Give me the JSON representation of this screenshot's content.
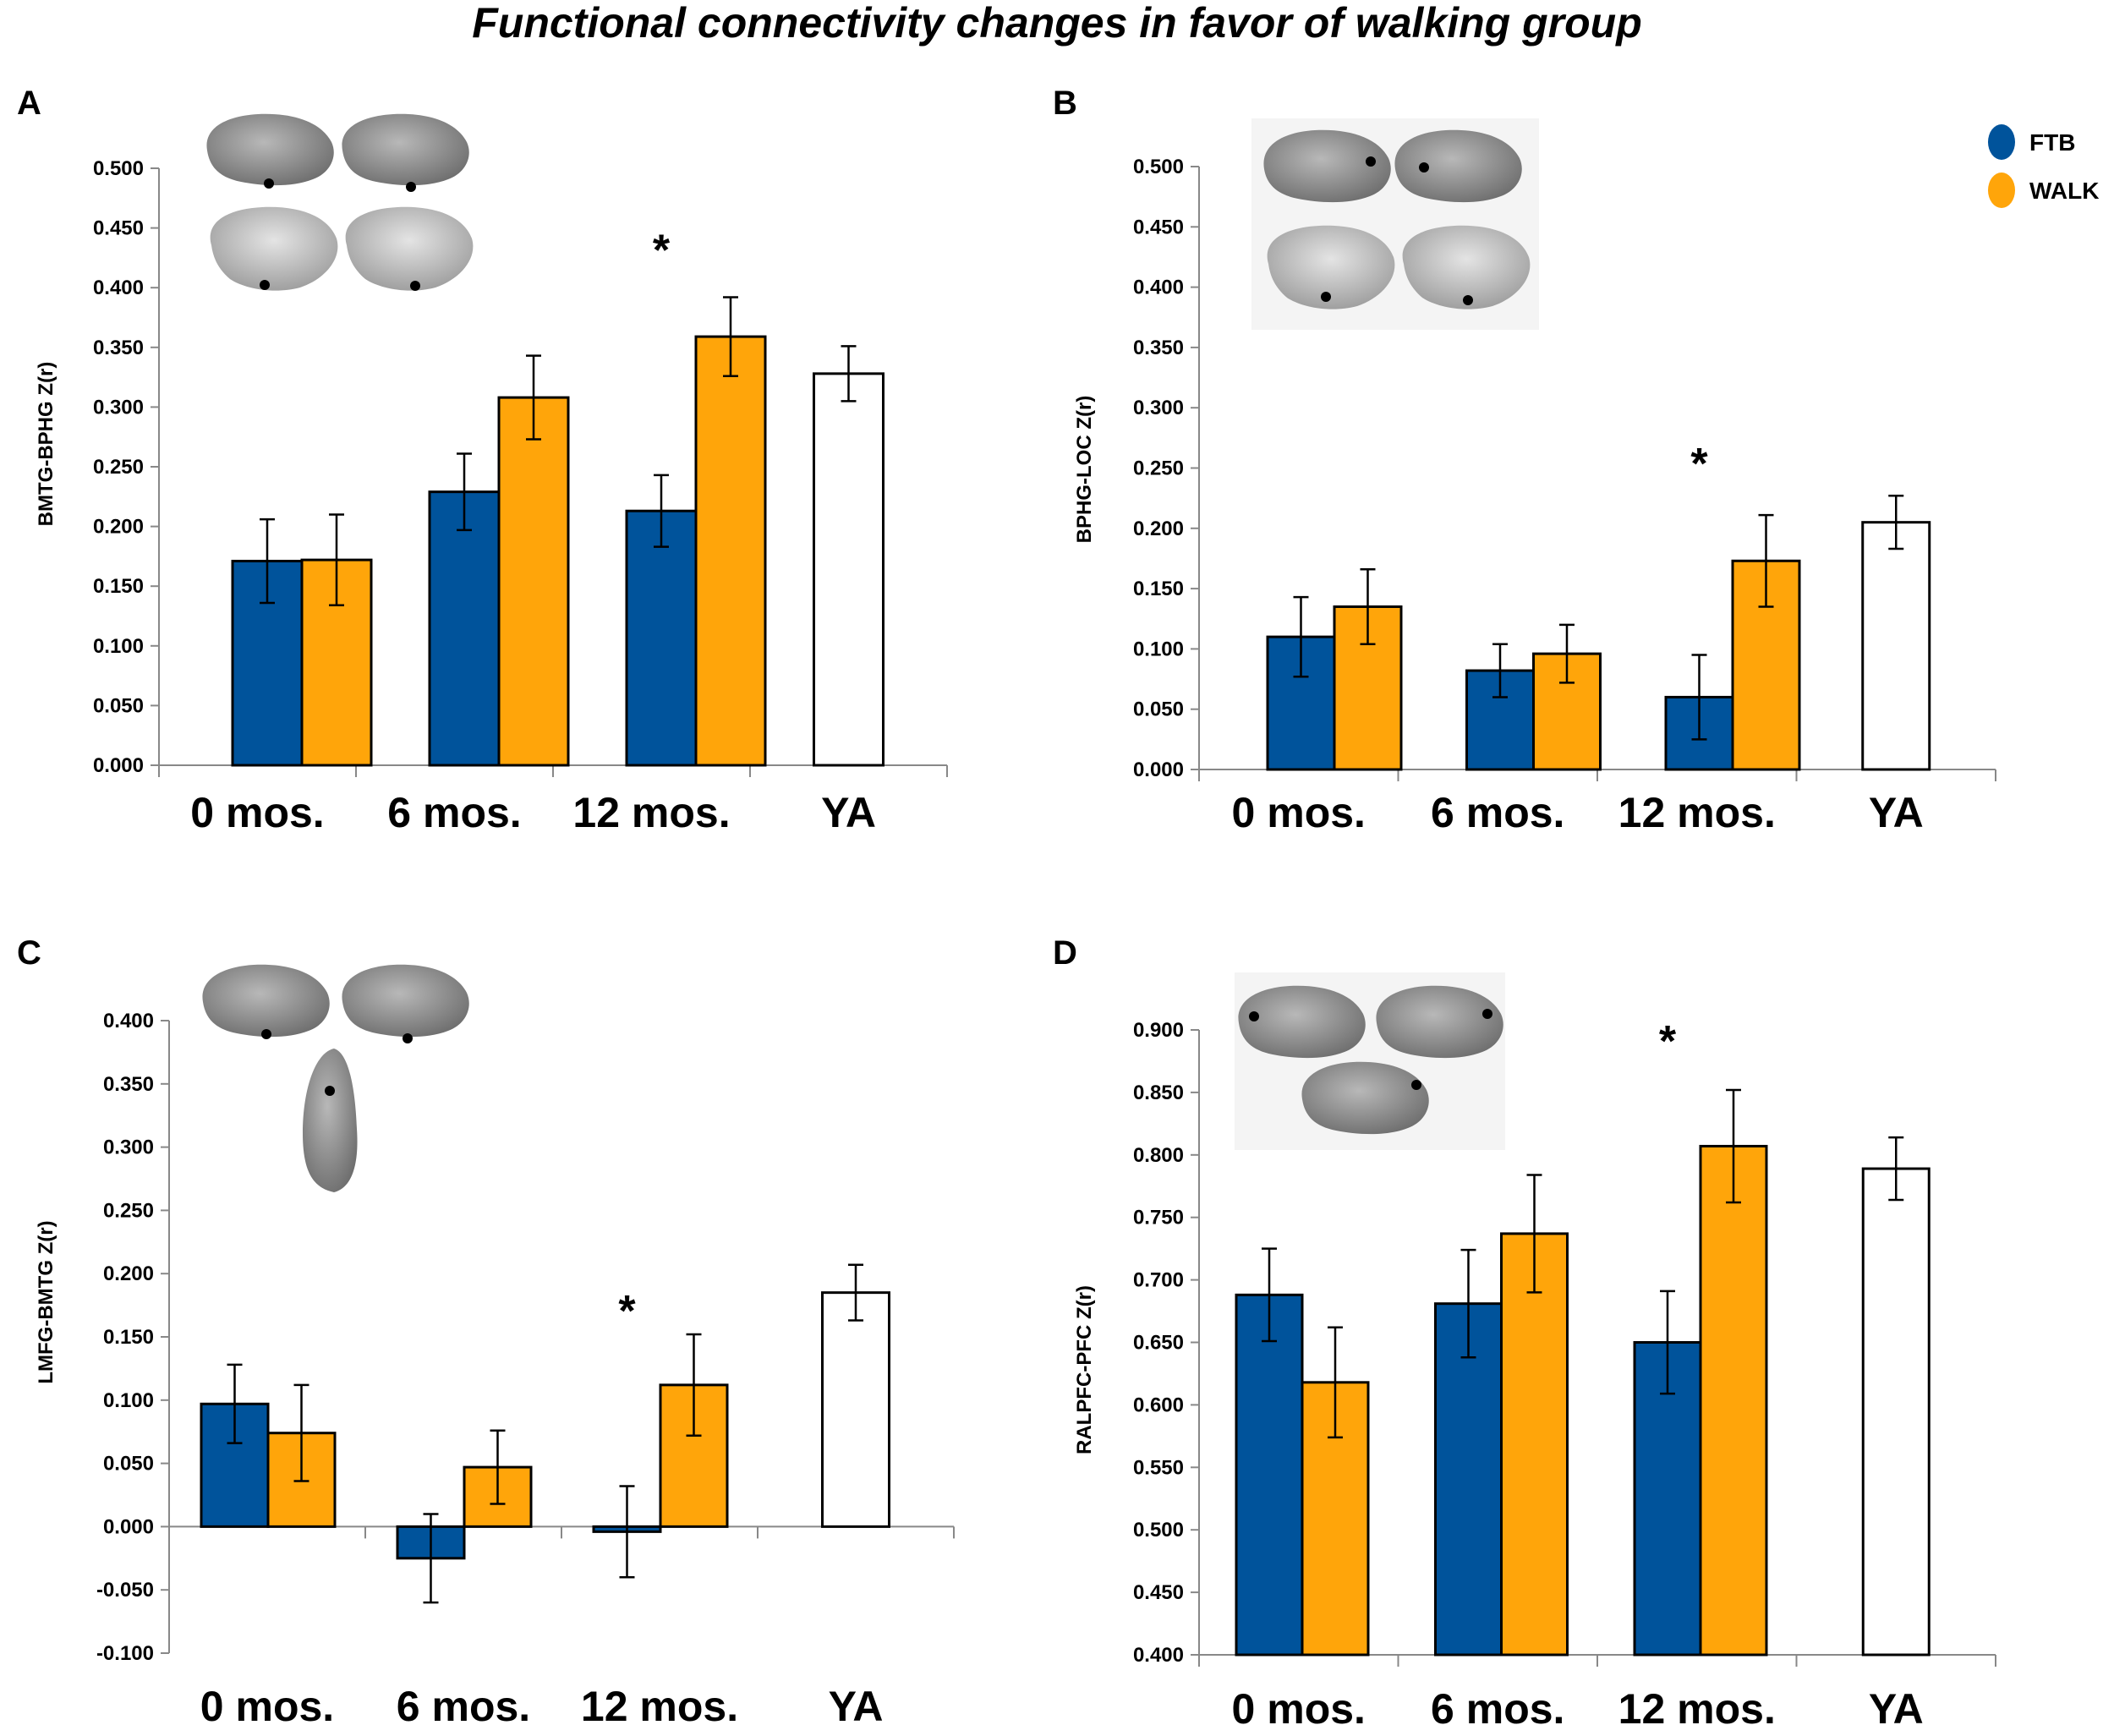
{
  "figure_title": "Functional connectivity changes in favor of walking group",
  "legend": [
    {
      "label": "FTB",
      "color": "#00539b"
    },
    {
      "label": "WALK",
      "color": "#ffa50a"
    }
  ],
  "colors": {
    "ya": "#ffffff",
    "axis": "#888888",
    "error": "#000000"
  },
  "chart_data": [
    {
      "panel": "A",
      "type": "bar",
      "ylabel": "BMTG-BPHG Z(r)",
      "ylim": [
        0,
        0.5
      ],
      "yticks": [
        "0.000",
        "0.050",
        "0.100",
        "0.150",
        "0.200",
        "0.250",
        "0.300",
        "0.350",
        "0.400",
        "0.450",
        "0.500"
      ],
      "categories": [
        "0 mos.",
        "6 mos.",
        "12 mos.",
        "YA"
      ],
      "series": [
        {
          "name": "FTB",
          "values": [
            0.171,
            0.229,
            0.213,
            null
          ],
          "errors": [
            0.035,
            0.032,
            0.03,
            null
          ]
        },
        {
          "name": "WALK",
          "values": [
            0.172,
            0.308,
            0.359,
            null
          ],
          "errors": [
            0.038,
            0.035,
            0.033,
            null
          ]
        },
        {
          "name": "YA",
          "values": [
            null,
            null,
            null,
            0.328
          ],
          "errors": [
            null,
            null,
            null,
            0.023
          ]
        }
      ],
      "significance": [
        {
          "category": "12 mos.",
          "symbol": "*"
        }
      ]
    },
    {
      "panel": "B",
      "type": "bar",
      "ylabel": "BPHG-LOC Z(r)",
      "ylim": [
        0,
        0.5
      ],
      "yticks": [
        "0.000",
        "0.050",
        "0.100",
        "0.150",
        "0.200",
        "0.250",
        "0.300",
        "0.350",
        "0.400",
        "0.450",
        "0.500"
      ],
      "categories": [
        "0 mos.",
        "6 mos.",
        "12 mos.",
        "YA"
      ],
      "series": [
        {
          "name": "FTB",
          "values": [
            0.11,
            0.082,
            0.06,
            null
          ],
          "errors": [
            0.033,
            0.022,
            0.035,
            null
          ]
        },
        {
          "name": "WALK",
          "values": [
            0.135,
            0.096,
            0.173,
            null
          ],
          "errors": [
            0.031,
            0.024,
            0.038,
            null
          ]
        },
        {
          "name": "YA",
          "values": [
            null,
            null,
            null,
            0.205
          ],
          "errors": [
            null,
            null,
            null,
            0.022
          ]
        }
      ],
      "significance": [
        {
          "category": "12 mos.",
          "symbol": "*"
        }
      ]
    },
    {
      "panel": "C",
      "type": "bar",
      "ylabel": "LMFG-BMTG Z(r)",
      "ylim": [
        -0.1,
        0.4
      ],
      "yticks": [
        "-0.100",
        "-0.050",
        "0.000",
        "0.050",
        "0.100",
        "0.150",
        "0.200",
        "0.250",
        "0.300",
        "0.350",
        "0.400"
      ],
      "categories": [
        "0 mos.",
        "6 mos.",
        "12 mos.",
        "YA"
      ],
      "series": [
        {
          "name": "FTB",
          "values": [
            0.097,
            -0.025,
            -0.004,
            null
          ],
          "errors": [
            0.031,
            0.035,
            0.036,
            null
          ]
        },
        {
          "name": "WALK",
          "values": [
            0.074,
            0.047,
            0.112,
            null
          ],
          "errors": [
            0.038,
            0.029,
            0.04,
            null
          ]
        },
        {
          "name": "YA",
          "values": [
            null,
            null,
            null,
            0.185
          ],
          "errors": [
            null,
            null,
            null,
            0.022
          ]
        }
      ],
      "significance": [
        {
          "category": "12 mos.",
          "symbol": "*"
        }
      ]
    },
    {
      "panel": "D",
      "type": "bar",
      "ylabel": "RALPFC-PFC Z(r)",
      "ylim": [
        0.4,
        0.9
      ],
      "yticks": [
        "0.400",
        "0.450",
        "0.500",
        "0.550",
        "0.600",
        "0.650",
        "0.700",
        "0.750",
        "0.800",
        "0.850",
        "0.900"
      ],
      "categories": [
        "0 mos.",
        "6 mos.",
        "12 mos.",
        "YA"
      ],
      "series": [
        {
          "name": "FTB",
          "values": [
            0.688,
            0.681,
            0.65,
            null
          ],
          "errors": [
            0.037,
            0.043,
            0.041,
            null
          ]
        },
        {
          "name": "WALK",
          "values": [
            0.618,
            0.737,
            0.807,
            null
          ],
          "errors": [
            0.044,
            0.047,
            0.045,
            null
          ]
        },
        {
          "name": "YA",
          "values": [
            null,
            null,
            null,
            0.789
          ],
          "errors": [
            null,
            null,
            null,
            0.025
          ]
        }
      ],
      "significance": [
        {
          "category": "12 mos.",
          "symbol": "*"
        }
      ]
    }
  ]
}
